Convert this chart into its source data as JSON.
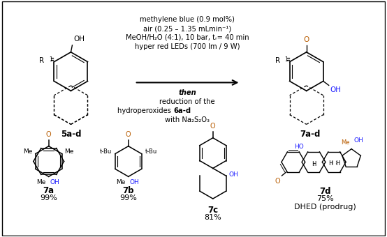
{
  "background_color": "#ffffff",
  "border_color": "#000000",
  "figsize": [
    5.54,
    3.4
  ],
  "dpi": 100,
  "above_arrow_lines": [
    "methylene blue (0.9 mol%)",
    "air (0.25 – 1.35 mLmin⁻¹)",
    "MeOH/H₂O (4:1), 10 bar, tᵣ= 40 min",
    "hyper red LEDs (700 lm / 9 W)"
  ],
  "below_arrow_lines": [
    "then",
    "reduction of the",
    "hydroperoxides 6a-d",
    "with Na₂S₂O₃"
  ],
  "oh_color": "#1a1aff",
  "ho_color": "#1a1aff",
  "text_color": "#000000",
  "orange_color": "#b85c00",
  "font_size_arrow_text": 7.2,
  "font_size_labels": 8.5,
  "font_size_yield": 8.0
}
